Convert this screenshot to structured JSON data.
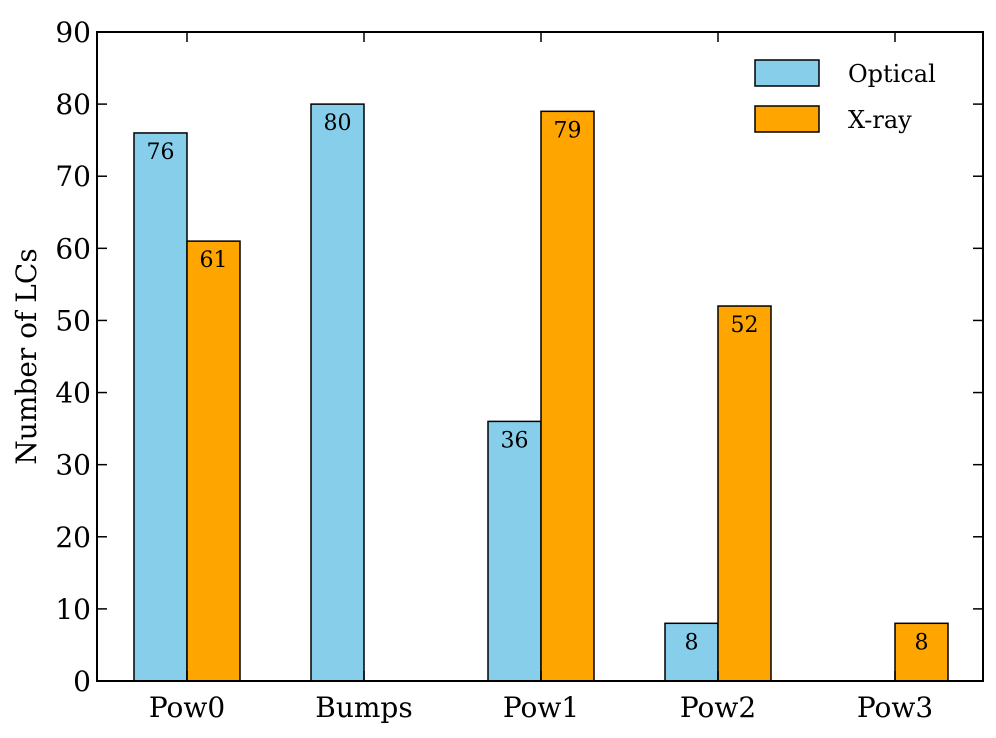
{
  "chart_data": {
    "type": "bar",
    "title": "",
    "xlabel": "",
    "ylabel": "Number of LCs",
    "ylim": [
      0,
      90
    ],
    "yticks": [
      0,
      10,
      20,
      30,
      40,
      50,
      60,
      70,
      80,
      90
    ],
    "categories": [
      "Pow0",
      "Bumps",
      "Pow1",
      "Pow2",
      "Pow3"
    ],
    "series": [
      {
        "name": "Optical",
        "color": "#87CEEB",
        "values": [
          76,
          80,
          36,
          8,
          0
        ]
      },
      {
        "name": "X-ray",
        "color": "#FFA500",
        "values": [
          61,
          0,
          79,
          52,
          8
        ]
      }
    ],
    "legend_position": "top-right",
    "grid": false
  }
}
